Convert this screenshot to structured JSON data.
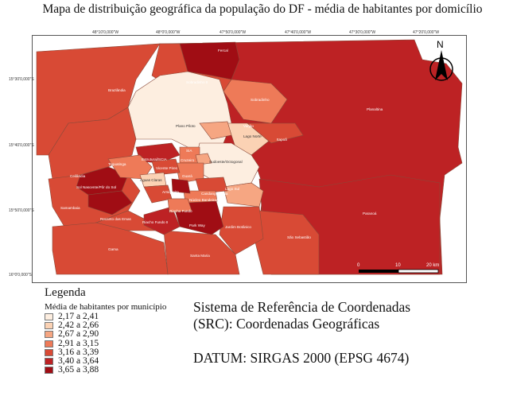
{
  "title": "Mapa de distribuição geográfica da população do DF - média de habitantes por domicílio",
  "top_coords": [
    "48°10'0,000\"W",
    "48°0'0,000\"W",
    "47°50'0,000\"W",
    "47°40'0,000\"W",
    "47°30'0,000\"W",
    "47°20'0,000\"W"
  ],
  "left_coords": [
    "15°30'0,000\"S",
    "15°40'0,000\"S",
    "15°50'0,000\"S",
    "16°0'0,000\"S"
  ],
  "north_arrow": {
    "label": "N",
    "icon": "north-arrow-icon"
  },
  "scale_bar": {
    "labels": [
      "0",
      "10",
      "20 km"
    ]
  },
  "legend": {
    "title": "Legenda",
    "subtitle": "Média de habitantes por município",
    "classes": [
      {
        "label": "2,17 a 2,41",
        "color": "#fdeee0"
      },
      {
        "label": "2,42 a 2,66",
        "color": "#fbd2b4"
      },
      {
        "label": "2,67 a 2,90",
        "color": "#f6a682"
      },
      {
        "label": "2,91 a 3,15",
        "color": "#ee7a58"
      },
      {
        "label": "3,16 a 3,39",
        "color": "#d84a35"
      },
      {
        "label": "3,40 a 3,64",
        "color": "#bd2224"
      },
      {
        "label": "3,65 a 3,88",
        "color": "#a00d14"
      }
    ]
  },
  "srs_text": [
    "Sistema de Referência de Coordenadas",
    "(SRC): Coordenadas Geográficas"
  ],
  "datum_text": "DATUM: SIRGAS 2000 (EPSG 4674)",
  "regions": [
    {
      "name": "Fercal",
      "class": 6
    },
    {
      "name": "Sobradinho II",
      "class": 4
    },
    {
      "name": "Brazlândia",
      "class": 4
    },
    {
      "name": "Sobradinho",
      "class": 3
    },
    {
      "name": "Planaltina",
      "class": 4
    },
    {
      "name": "Plano Piloto",
      "class": 0
    },
    {
      "name": "Varjão",
      "class": 2
    },
    {
      "name": "Lago Norte",
      "class": 1
    },
    {
      "name": "Itapoã",
      "class": 4
    },
    {
      "name": "SIA",
      "class": 3
    },
    {
      "name": "Cruzeiro",
      "class": 2
    },
    {
      "name": "Sudoeste/Octogonal",
      "class": 0
    },
    {
      "name": "Estrutural/SCIA",
      "class": 5
    },
    {
      "name": "Vicente Pires",
      "class": 4
    },
    {
      "name": "Ceilândia",
      "class": 3
    },
    {
      "name": "Taguatinga",
      "class": 3
    },
    {
      "name": "Águas Claras",
      "class": 1
    },
    {
      "name": "Sol Nascente/Pôr do Sol",
      "class": 6
    },
    {
      "name": "Arniqueira",
      "class": 4
    },
    {
      "name": "Guará",
      "class": 3
    },
    {
      "name": "Lago Sul",
      "class": 2
    },
    {
      "name": "Candangolândia",
      "class": 4
    },
    {
      "name": "Núcleo Bandeirante",
      "class": 3
    },
    {
      "name": "Park Way",
      "class": 1
    },
    {
      "name": "Samambaia",
      "class": 5
    },
    {
      "name": "Riacho Fundo",
      "class": 3
    },
    {
      "name": "Recanto das Emas",
      "class": 4
    },
    {
      "name": "Riacho Fundo II",
      "class": 5
    },
    {
      "name": "Paranoá",
      "class": 4
    },
    {
      "name": "Recanto das Emas / Park Way",
      "class": 6
    },
    {
      "name": "Jardim Botânico",
      "class": 3
    },
    {
      "name": "Gama",
      "class": 3
    },
    {
      "name": "Santa Maria",
      "class": 3
    },
    {
      "name": "São Sebastião",
      "class": 4
    }
  ]
}
